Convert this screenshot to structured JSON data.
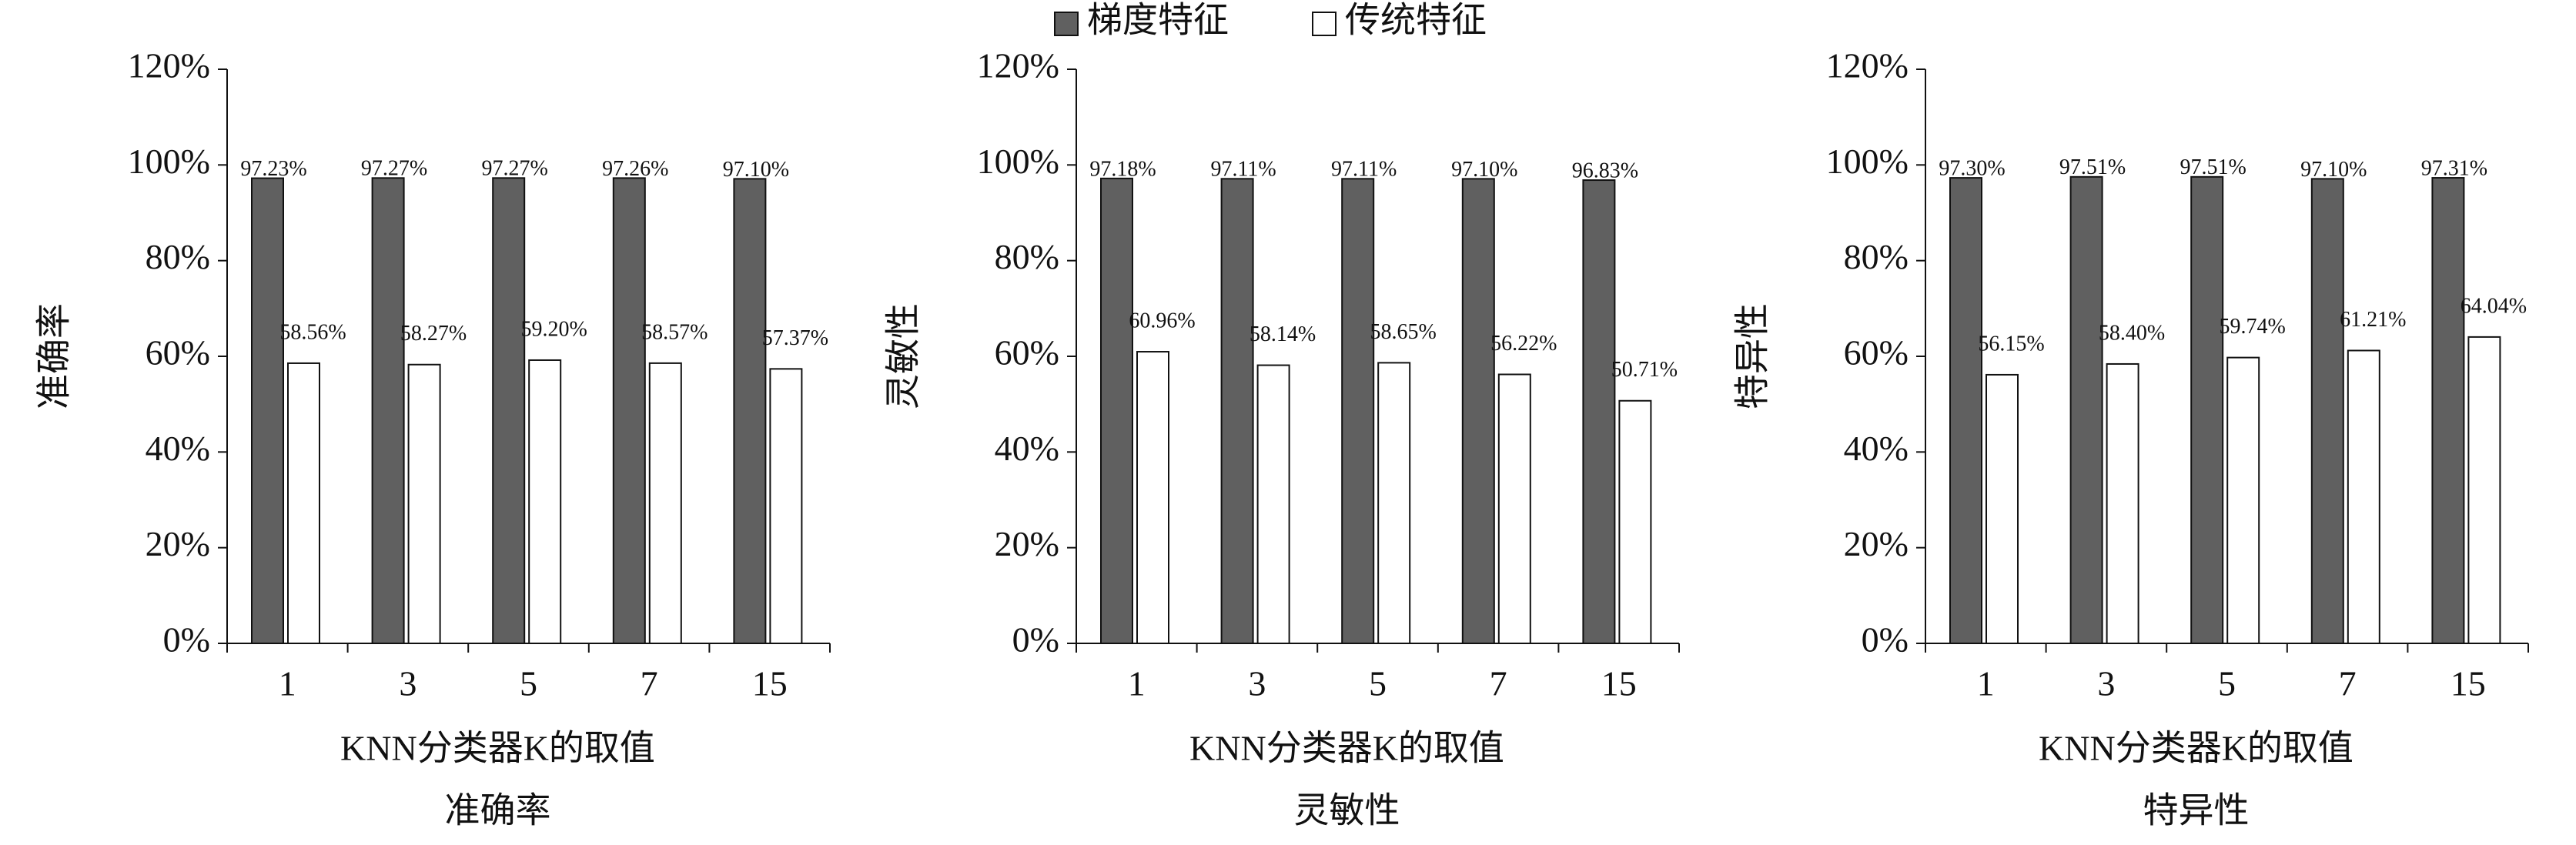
{
  "chart_data": [
    {
      "type": "bar",
      "caption": "准确率",
      "ylabel": "准确率",
      "xlabel": "KNN分类器K的取值",
      "categories": [
        "1",
        "3",
        "5",
        "7",
        "15"
      ],
      "series": [
        {
          "name": "梯度特征",
          "color": "#606060",
          "values": [
            97.23,
            97.27,
            97.27,
            97.26,
            97.1
          ],
          "value_labels": [
            "97.23%",
            "97.27%",
            "97.27%",
            "97.26%",
            "97.10%"
          ]
        },
        {
          "name": "传统特征",
          "color": "#ffffff",
          "values": [
            58.56,
            58.27,
            59.2,
            58.57,
            57.37
          ],
          "value_labels": [
            "58.56%",
            "58.27%",
            "59.20%",
            "58.57%",
            "57.37%"
          ]
        }
      ],
      "ylim": [
        0,
        120
      ],
      "yticks": [
        {
          "value": 0,
          "label": "0%"
        },
        {
          "value": 20,
          "label": "20%"
        },
        {
          "value": 40,
          "label": "40%"
        },
        {
          "value": 60,
          "label": "60%"
        },
        {
          "value": 80,
          "label": "80%"
        },
        {
          "value": 100,
          "label": "100%"
        },
        {
          "value": 120,
          "label": "120%"
        }
      ]
    },
    {
      "type": "bar",
      "caption": "灵敏性",
      "ylabel": "灵敏性",
      "xlabel": "KNN分类器K的取值",
      "categories": [
        "1",
        "3",
        "5",
        "7",
        "15"
      ],
      "series": [
        {
          "values": [
            97.18,
            97.11,
            97.11,
            97.1,
            96.83
          ],
          "value_labels": [
            "97.18%",
            "97.11%",
            "97.11%",
            "97.10%",
            "96.83%"
          ]
        },
        {
          "values": [
            60.96,
            58.14,
            58.65,
            56.22,
            50.71
          ],
          "value_labels": [
            "60.96%",
            "58.14%",
            "58.65%",
            "56.22%",
            "50.71%"
          ]
        }
      ],
      "ylim": [
        0,
        120
      ],
      "yticks": [
        {
          "value": 0,
          "label": "0%"
        },
        {
          "value": 20,
          "label": "20%"
        },
        {
          "value": 40,
          "label": "40%"
        },
        {
          "value": 60,
          "label": "60%"
        },
        {
          "value": 80,
          "label": "80%"
        },
        {
          "value": 100,
          "label": "100%"
        },
        {
          "value": 120,
          "label": "120%"
        }
      ]
    },
    {
      "type": "bar",
      "caption": "特异性",
      "ylabel": "特异性",
      "xlabel": "KNN分类器K的取值",
      "categories": [
        "1",
        "3",
        "5",
        "7",
        "15"
      ],
      "series": [
        {
          "values": [
            97.3,
            97.51,
            97.51,
            97.1,
            97.31
          ],
          "value_labels": [
            "97.30%",
            "97.51%",
            "97.51%",
            "97.10%",
            "97.31%"
          ]
        },
        {
          "values": [
            56.15,
            58.4,
            59.74,
            61.21,
            64.04
          ],
          "value_labels": [
            "56.15%",
            "58.40%",
            "59.74%",
            "61.21%",
            "64.04%"
          ]
        }
      ],
      "ylim": [
        0,
        120
      ],
      "yticks": [
        {
          "value": 0,
          "label": "0%"
        },
        {
          "value": 20,
          "label": "20%"
        },
        {
          "value": 40,
          "label": "40%"
        },
        {
          "value": 60,
          "label": "60%"
        },
        {
          "value": 80,
          "label": "80%"
        },
        {
          "value": 100,
          "label": "100%"
        },
        {
          "value": 120,
          "label": "120%"
        }
      ]
    }
  ]
}
